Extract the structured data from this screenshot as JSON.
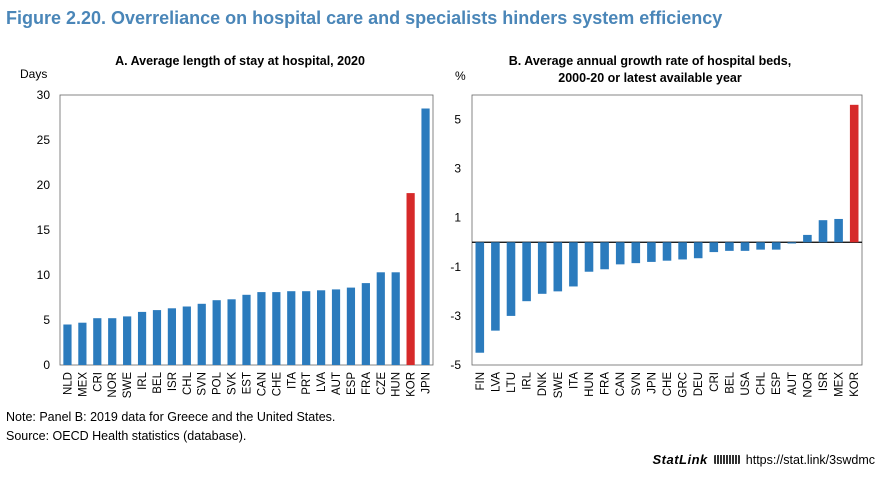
{
  "figure_title": "Figure 2.20. Overreliance on hospital care and specialists hinders system efficiency",
  "note": "Note: Panel B: 2019 data for Greece and the United States.",
  "source": "Source: OECD Health statistics (database).",
  "statlink": {
    "logo": "StatLink",
    "url": "https://stat.link/3swdmc"
  },
  "colors": {
    "bar": "#2b7bbd",
    "highlight": "#d62a2a",
    "title": "#4a86b8"
  },
  "chart_data": [
    {
      "type": "bar",
      "title": "A. Average length of stay at hospital, 2020",
      "ylabel": "Days",
      "ylim": [
        0,
        30
      ],
      "yticks": [
        0,
        5,
        10,
        15,
        20,
        25,
        30
      ],
      "categories": [
        "NLD",
        "MEX",
        "CRI",
        "NOR",
        "SWE",
        "IRL",
        "BEL",
        "ISR",
        "CHL",
        "SVN",
        "POL",
        "SVK",
        "EST",
        "CAN",
        "CHE",
        "ITA",
        "PRT",
        "LVA",
        "AUT",
        "ESP",
        "FRA",
        "CZE",
        "HUN",
        "KOR",
        "JPN"
      ],
      "values": [
        4.5,
        4.7,
        5.2,
        5.2,
        5.4,
        5.9,
        6.1,
        6.3,
        6.5,
        6.8,
        7.2,
        7.3,
        7.8,
        8.1,
        8.1,
        8.2,
        8.2,
        8.3,
        8.4,
        8.6,
        9.1,
        10.3,
        10.3,
        19.1,
        28.5
      ],
      "highlight": [
        "KOR"
      ]
    },
    {
      "type": "bar",
      "title": "B. Average annual growth rate of hospital beds, 2000-20 or latest available year",
      "ylabel": "%",
      "ylim": [
        -5,
        6
      ],
      "yticks": [
        -5,
        -3,
        -1,
        1,
        3,
        5
      ],
      "categories": [
        "FIN",
        "LVA",
        "LTU",
        "IRL",
        "DNK",
        "SWE",
        "ITA",
        "HUN",
        "FRA",
        "CAN",
        "SVN",
        "JPN",
        "CHE",
        "GRC",
        "DEU",
        "CRI",
        "BEL",
        "USA",
        "CHL",
        "ESP",
        "AUT",
        "NOR",
        "ISR",
        "MEX",
        "KOR"
      ],
      "values": [
        -4.5,
        -3.6,
        -3.0,
        -2.4,
        -2.1,
        -2.0,
        -1.8,
        -1.2,
        -1.1,
        -0.9,
        -0.85,
        -0.8,
        -0.75,
        -0.7,
        -0.65,
        -0.4,
        -0.35,
        -0.35,
        -0.3,
        -0.3,
        -0.05,
        0.3,
        0.9,
        0.95,
        5.6
      ],
      "highlight": [
        "KOR"
      ]
    }
  ]
}
